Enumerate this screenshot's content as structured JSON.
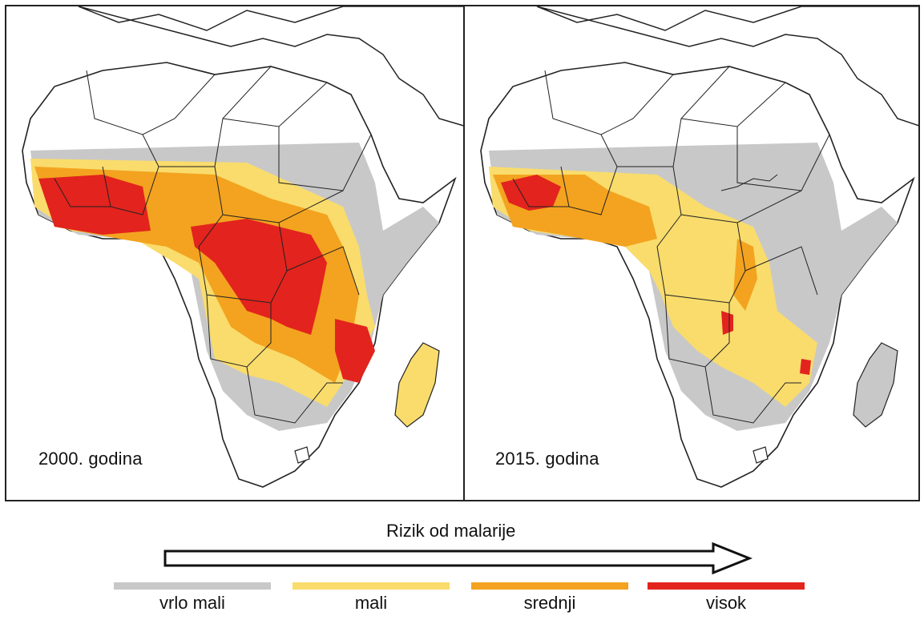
{
  "maps": [
    {
      "year_label": "2000. godina"
    },
    {
      "year_label": "2015. godina"
    }
  ],
  "legend": {
    "title": "Rizik od malarije",
    "categories": [
      {
        "label": "vrlo mali",
        "color": "#c8c8c8"
      },
      {
        "label": "mali",
        "color": "#f9dc6c"
      },
      {
        "label": "srednji",
        "color": "#f3a31f"
      },
      {
        "label": "visok",
        "color": "#e3231d"
      }
    ]
  },
  "colors": {
    "very_low": "#c8c8c8",
    "low": "#f9dc6c",
    "medium": "#f3a31f",
    "high": "#e3231d",
    "land": "#ffffff",
    "border": "#222222"
  }
}
